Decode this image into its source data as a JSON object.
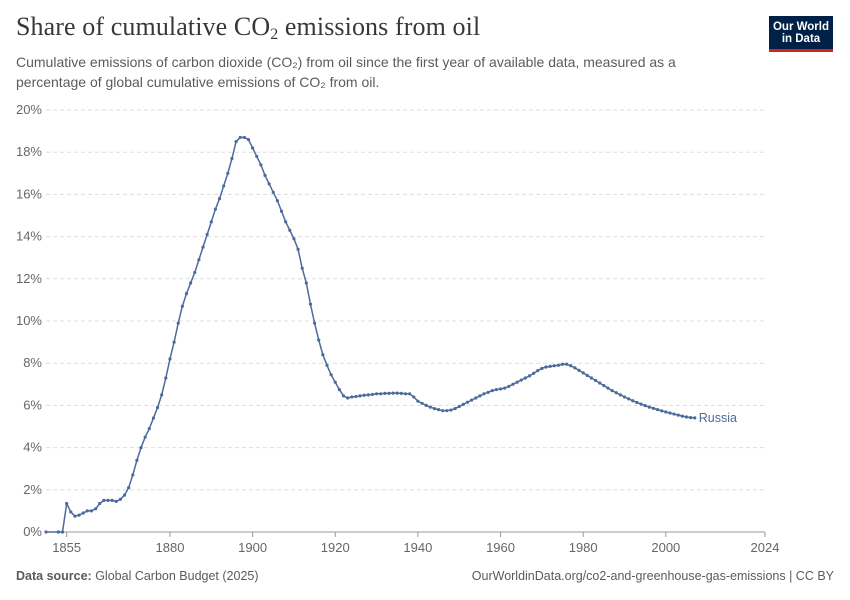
{
  "header": {
    "title_main": "Share of cumulative CO",
    "title_sub": "2",
    "title_tail": " emissions from oil",
    "subtitle": "Cumulative emissions of carbon dioxide (CO₂) from oil since the first year of available data, measured as a percentage of global cumulative emissions of CO₂ from oil."
  },
  "logo": {
    "line1": "Our World",
    "line2": "in Data",
    "bg": "#002147",
    "accent": "#ce261e"
  },
  "footer": {
    "source_label": "Data source:",
    "source_value": " Global Carbon Budget (2025)",
    "url_license": "OurWorldinData.org/co2-and-greenhouse-gas-emissions | CC BY"
  },
  "chart_data": {
    "type": "line",
    "xlim": [
      1850,
      2024
    ],
    "ylim": [
      0,
      20
    ],
    "x_ticks": [
      "1855",
      "1880",
      "1900",
      "1920",
      "1940",
      "1960",
      "1980",
      "2000",
      "2024"
    ],
    "y_ticks": [
      "0%",
      "2%",
      "4%",
      "6%",
      "8%",
      "10%",
      "12%",
      "14%",
      "16%",
      "18%",
      "20%"
    ],
    "grid": "horizontal-dashed",
    "line_color": "#4c6a9c",
    "series": [
      {
        "name": "Russia",
        "points": [
          [
            1850,
            0
          ],
          [
            1853,
            0
          ],
          [
            1854,
            0
          ],
          [
            1855,
            1.35
          ],
          [
            1856,
            0.95
          ],
          [
            1857,
            0.75
          ],
          [
            1858,
            0.8
          ],
          [
            1859,
            0.9
          ],
          [
            1860,
            1.0
          ],
          [
            1861,
            1.0
          ],
          [
            1862,
            1.1
          ],
          [
            1863,
            1.35
          ],
          [
            1864,
            1.5
          ],
          [
            1865,
            1.5
          ],
          [
            1866,
            1.5
          ],
          [
            1867,
            1.45
          ],
          [
            1868,
            1.55
          ],
          [
            1869,
            1.75
          ],
          [
            1870,
            2.1
          ],
          [
            1871,
            2.7
          ],
          [
            1872,
            3.4
          ],
          [
            1873,
            4.0
          ],
          [
            1874,
            4.5
          ],
          [
            1875,
            4.9
          ],
          [
            1876,
            5.4
          ],
          [
            1877,
            5.9
          ],
          [
            1878,
            6.5
          ],
          [
            1879,
            7.3
          ],
          [
            1880,
            8.2
          ],
          [
            1881,
            9.0
          ],
          [
            1882,
            9.9
          ],
          [
            1883,
            10.7
          ],
          [
            1884,
            11.3
          ],
          [
            1885,
            11.8
          ],
          [
            1886,
            12.3
          ],
          [
            1887,
            12.9
          ],
          [
            1888,
            13.5
          ],
          [
            1889,
            14.1
          ],
          [
            1890,
            14.7
          ],
          [
            1891,
            15.3
          ],
          [
            1892,
            15.8
          ],
          [
            1893,
            16.4
          ],
          [
            1894,
            17.0
          ],
          [
            1895,
            17.7
          ],
          [
            1896,
            18.5
          ],
          [
            1897,
            18.7
          ],
          [
            1898,
            18.7
          ],
          [
            1899,
            18.6
          ],
          [
            1900,
            18.2
          ],
          [
            1901,
            17.8
          ],
          [
            1902,
            17.4
          ],
          [
            1903,
            16.9
          ],
          [
            1904,
            16.5
          ],
          [
            1905,
            16.1
          ],
          [
            1906,
            15.7
          ],
          [
            1907,
            15.2
          ],
          [
            1908,
            14.7
          ],
          [
            1909,
            14.3
          ],
          [
            1910,
            13.9
          ],
          [
            1911,
            13.4
          ],
          [
            1912,
            12.5
          ],
          [
            1913,
            11.8
          ],
          [
            1914,
            10.8
          ],
          [
            1915,
            9.9
          ],
          [
            1916,
            9.1
          ],
          [
            1917,
            8.4
          ],
          [
            1918,
            7.9
          ],
          [
            1919,
            7.45
          ],
          [
            1920,
            7.1
          ],
          [
            1921,
            6.75
          ],
          [
            1922,
            6.45
          ],
          [
            1923,
            6.35
          ],
          [
            1924,
            6.4
          ],
          [
            1925,
            6.42
          ],
          [
            1926,
            6.45
          ],
          [
            1927,
            6.48
          ],
          [
            1928,
            6.5
          ],
          [
            1929,
            6.52
          ],
          [
            1930,
            6.55
          ],
          [
            1931,
            6.55
          ],
          [
            1932,
            6.57
          ],
          [
            1933,
            6.57
          ],
          [
            1934,
            6.58
          ],
          [
            1935,
            6.58
          ],
          [
            1936,
            6.57
          ],
          [
            1937,
            6.55
          ],
          [
            1938,
            6.55
          ],
          [
            1939,
            6.4
          ],
          [
            1940,
            6.2
          ],
          [
            1941,
            6.1
          ],
          [
            1942,
            6.0
          ],
          [
            1943,
            5.92
          ],
          [
            1944,
            5.85
          ],
          [
            1945,
            5.8
          ],
          [
            1946,
            5.75
          ],
          [
            1947,
            5.75
          ],
          [
            1948,
            5.78
          ],
          [
            1949,
            5.85
          ],
          [
            1950,
            5.95
          ],
          [
            1951,
            6.05
          ],
          [
            1952,
            6.15
          ],
          [
            1953,
            6.25
          ],
          [
            1954,
            6.35
          ],
          [
            1955,
            6.45
          ],
          [
            1956,
            6.55
          ],
          [
            1957,
            6.62
          ],
          [
            1958,
            6.7
          ],
          [
            1959,
            6.75
          ],
          [
            1960,
            6.78
          ],
          [
            1961,
            6.82
          ],
          [
            1962,
            6.9
          ],
          [
            1963,
            7.0
          ],
          [
            1964,
            7.1
          ],
          [
            1965,
            7.2
          ],
          [
            1966,
            7.3
          ],
          [
            1967,
            7.4
          ],
          [
            1968,
            7.52
          ],
          [
            1969,
            7.65
          ],
          [
            1970,
            7.75
          ],
          [
            1971,
            7.82
          ],
          [
            1972,
            7.85
          ],
          [
            1973,
            7.88
          ],
          [
            1974,
            7.9
          ],
          [
            1975,
            7.95
          ],
          [
            1976,
            7.95
          ],
          [
            1977,
            7.88
          ],
          [
            1978,
            7.78
          ],
          [
            1979,
            7.66
          ],
          [
            1980,
            7.54
          ],
          [
            1981,
            7.42
          ],
          [
            1982,
            7.3
          ],
          [
            1983,
            7.18
          ],
          [
            1984,
            7.06
          ],
          [
            1985,
            6.94
          ],
          [
            1986,
            6.82
          ],
          [
            1987,
            6.7
          ],
          [
            1988,
            6.6
          ],
          [
            1989,
            6.5
          ],
          [
            1990,
            6.4
          ],
          [
            1991,
            6.31
          ],
          [
            1992,
            6.22
          ],
          [
            1993,
            6.14
          ],
          [
            1994,
            6.06
          ],
          [
            1995,
            5.99
          ],
          [
            1996,
            5.92
          ],
          [
            1997,
            5.86
          ],
          [
            1998,
            5.8
          ],
          [
            1999,
            5.74
          ],
          [
            2000,
            5.69
          ],
          [
            2001,
            5.64
          ],
          [
            2002,
            5.59
          ],
          [
            2003,
            5.54
          ],
          [
            2004,
            5.49
          ],
          [
            2005,
            5.45
          ],
          [
            2006,
            5.42
          ],
          [
            2007,
            5.41
          ]
        ]
      }
    ]
  }
}
